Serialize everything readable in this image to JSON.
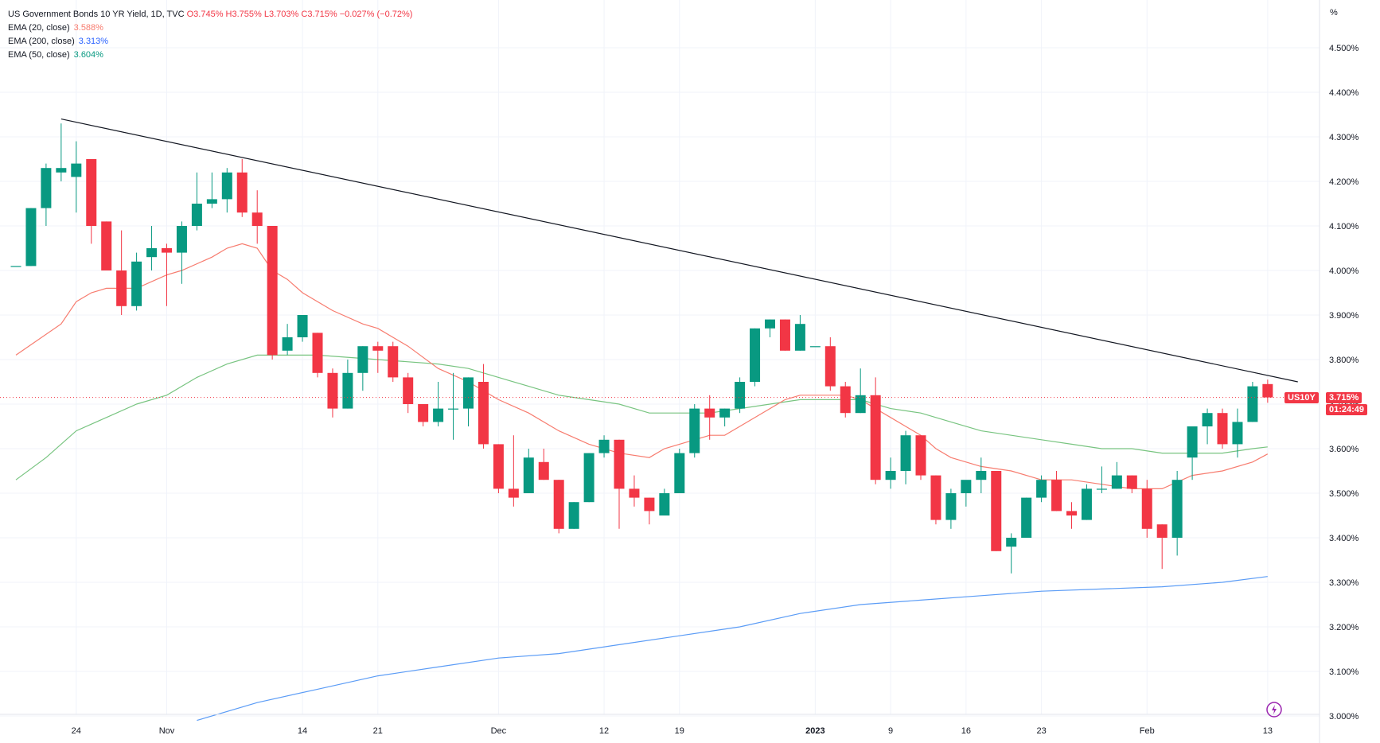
{
  "legend": {
    "title": "US Government Bonds 10 YR Yield, 1D, TVC",
    "ohlc": {
      "o_label": "O",
      "o": "3.745%",
      "h_label": "H",
      "h": "3.755%",
      "l_label": "L",
      "l": "3.703%",
      "c_label": "C",
      "c": "3.715%",
      "change": "−0.027% (−0.72%)"
    },
    "ema20": {
      "label": "EMA (20, close)",
      "value": "3.588%"
    },
    "ema200": {
      "label": "EMA (200, close)",
      "value": "3.313%"
    },
    "ema50": {
      "label": "EMA (50, close)",
      "value": "3.604%"
    }
  },
  "price_axis_unit": "%",
  "price_badge": {
    "symbol": "US10Y",
    "price": "3.715%",
    "countdown": "01:24:49"
  },
  "colors": {
    "up": "#089981",
    "down": "#f23645",
    "ema20": "#f77c6f",
    "ema50": "#78c480",
    "ema200": "#5b9cf6",
    "trendline": "#131722",
    "grid": "#f0f3fa",
    "replay_icon": "#9c27b0"
  },
  "chart_data": {
    "type": "candlestick",
    "title": "US Government Bonds 10 YR Yield, 1D, TVC",
    "ylim": [
      3.0,
      4.55
    ],
    "yticks": [
      3.0,
      3.1,
      3.2,
      3.3,
      3.4,
      3.5,
      3.6,
      3.7,
      3.8,
      3.9,
      4.0,
      4.1,
      4.2,
      4.3,
      4.4,
      4.5
    ],
    "ytick_labels": [
      "3.000%",
      "3.100%",
      "3.200%",
      "3.300%",
      "3.400%",
      "3.500%",
      "3.600%",
      "3.700%",
      "3.800%",
      "3.900%",
      "4.000%",
      "4.100%",
      "4.200%",
      "4.300%",
      "4.400%",
      "4.500%"
    ],
    "xticks": [
      {
        "index": 4,
        "label": "24"
      },
      {
        "index": 10,
        "label": "Nov"
      },
      {
        "index": 19,
        "label": "14"
      },
      {
        "index": 24,
        "label": "21"
      },
      {
        "index": 32,
        "label": "Dec"
      },
      {
        "index": 39,
        "label": "12"
      },
      {
        "index": 44,
        "label": "19"
      },
      {
        "index": 53,
        "label": "2023"
      },
      {
        "index": 58,
        "label": "9"
      },
      {
        "index": 63,
        "label": "16"
      },
      {
        "index": 68,
        "label": "23"
      },
      {
        "index": 75,
        "label": "Feb"
      },
      {
        "index": 83,
        "label": "13"
      }
    ],
    "candles": [
      {
        "o": 4.01,
        "h": 4.01,
        "l": 4.01,
        "c": 4.01
      },
      {
        "o": 4.01,
        "h": 4.14,
        "l": 4.01,
        "c": 4.14
      },
      {
        "o": 4.14,
        "h": 4.24,
        "l": 4.1,
        "c": 4.23
      },
      {
        "o": 4.22,
        "h": 4.33,
        "l": 4.2,
        "c": 4.23
      },
      {
        "o": 4.21,
        "h": 4.29,
        "l": 4.13,
        "c": 4.24
      },
      {
        "o": 4.25,
        "h": 4.25,
        "l": 4.06,
        "c": 4.1
      },
      {
        "o": 4.11,
        "h": 4.11,
        "l": 4.0,
        "c": 4.0
      },
      {
        "o": 4.0,
        "h": 4.09,
        "l": 3.9,
        "c": 3.92
      },
      {
        "o": 3.92,
        "h": 4.04,
        "l": 3.91,
        "c": 4.02
      },
      {
        "o": 4.03,
        "h": 4.1,
        "l": 4.0,
        "c": 4.05
      },
      {
        "o": 4.05,
        "h": 4.06,
        "l": 3.92,
        "c": 4.04
      },
      {
        "o": 4.04,
        "h": 4.11,
        "l": 3.97,
        "c": 4.1
      },
      {
        "o": 4.1,
        "h": 4.22,
        "l": 4.09,
        "c": 4.15
      },
      {
        "o": 4.15,
        "h": 4.22,
        "l": 4.14,
        "c": 4.16
      },
      {
        "o": 4.16,
        "h": 4.23,
        "l": 4.13,
        "c": 4.22
      },
      {
        "o": 4.22,
        "h": 4.25,
        "l": 4.12,
        "c": 4.13
      },
      {
        "o": 4.13,
        "h": 4.18,
        "l": 4.06,
        "c": 4.1
      },
      {
        "o": 4.1,
        "h": 4.1,
        "l": 3.8,
        "c": 3.81
      },
      {
        "o": 3.82,
        "h": 3.88,
        "l": 3.81,
        "c": 3.85
      },
      {
        "o": 3.85,
        "h": 3.9,
        "l": 3.84,
        "c": 3.9
      },
      {
        "o": 3.86,
        "h": 3.86,
        "l": 3.76,
        "c": 3.77
      },
      {
        "o": 3.77,
        "h": 3.78,
        "l": 3.67,
        "c": 3.69
      },
      {
        "o": 3.69,
        "h": 3.8,
        "l": 3.69,
        "c": 3.77
      },
      {
        "o": 3.77,
        "h": 3.83,
        "l": 3.73,
        "c": 3.83
      },
      {
        "o": 3.83,
        "h": 3.84,
        "l": 3.77,
        "c": 3.82
      },
      {
        "o": 3.83,
        "h": 3.84,
        "l": 3.75,
        "c": 3.76
      },
      {
        "o": 3.76,
        "h": 3.77,
        "l": 3.68,
        "c": 3.7
      },
      {
        "o": 3.7,
        "h": 3.7,
        "l": 3.65,
        "c": 3.66
      },
      {
        "o": 3.66,
        "h": 3.75,
        "l": 3.65,
        "c": 3.69
      },
      {
        "o": 3.69,
        "h": 3.77,
        "l": 3.62,
        "c": 3.69
      },
      {
        "o": 3.69,
        "h": 3.76,
        "l": 3.65,
        "c": 3.76
      },
      {
        "o": 3.75,
        "h": 3.79,
        "l": 3.6,
        "c": 3.61
      },
      {
        "o": 3.61,
        "h": 3.61,
        "l": 3.5,
        "c": 3.51
      },
      {
        "o": 3.51,
        "h": 3.63,
        "l": 3.47,
        "c": 3.49
      },
      {
        "o": 3.5,
        "h": 3.6,
        "l": 3.5,
        "c": 3.58
      },
      {
        "o": 3.57,
        "h": 3.6,
        "l": 3.53,
        "c": 3.53
      },
      {
        "o": 3.53,
        "h": 3.53,
        "l": 3.41,
        "c": 3.42
      },
      {
        "o": 3.42,
        "h": 3.48,
        "l": 3.42,
        "c": 3.48
      },
      {
        "o": 3.48,
        "h": 3.59,
        "l": 3.48,
        "c": 3.59
      },
      {
        "o": 3.59,
        "h": 3.63,
        "l": 3.58,
        "c": 3.62
      },
      {
        "o": 3.62,
        "h": 3.62,
        "l": 3.42,
        "c": 3.51
      },
      {
        "o": 3.51,
        "h": 3.54,
        "l": 3.47,
        "c": 3.49
      },
      {
        "o": 3.49,
        "h": 3.49,
        "l": 3.43,
        "c": 3.46
      },
      {
        "o": 3.45,
        "h": 3.51,
        "l": 3.45,
        "c": 3.5
      },
      {
        "o": 3.5,
        "h": 3.6,
        "l": 3.5,
        "c": 3.59
      },
      {
        "o": 3.59,
        "h": 3.7,
        "l": 3.58,
        "c": 3.69
      },
      {
        "o": 3.69,
        "h": 3.72,
        "l": 3.62,
        "c": 3.67
      },
      {
        "o": 3.67,
        "h": 3.69,
        "l": 3.65,
        "c": 3.69
      },
      {
        "o": 3.69,
        "h": 3.76,
        "l": 3.68,
        "c": 3.75
      },
      {
        "o": 3.75,
        "h": 3.87,
        "l": 3.74,
        "c": 3.87
      },
      {
        "o": 3.87,
        "h": 3.89,
        "l": 3.85,
        "c": 3.89
      },
      {
        "o": 3.89,
        "h": 3.89,
        "l": 3.82,
        "c": 3.82
      },
      {
        "o": 3.82,
        "h": 3.9,
        "l": 3.82,
        "c": 3.88
      },
      {
        "o": 3.83,
        "h": 3.83,
        "l": 3.83,
        "c": 3.83
      },
      {
        "o": 3.83,
        "h": 3.85,
        "l": 3.73,
        "c": 3.74
      },
      {
        "o": 3.74,
        "h": 3.75,
        "l": 3.67,
        "c": 3.68
      },
      {
        "o": 3.68,
        "h": 3.78,
        "l": 3.68,
        "c": 3.72
      },
      {
        "o": 3.72,
        "h": 3.76,
        "l": 3.52,
        "c": 3.53
      },
      {
        "o": 3.53,
        "h": 3.58,
        "l": 3.51,
        "c": 3.55
      },
      {
        "o": 3.55,
        "h": 3.64,
        "l": 3.52,
        "c": 3.63
      },
      {
        "o": 3.63,
        "h": 3.63,
        "l": 3.53,
        "c": 3.54
      },
      {
        "o": 3.54,
        "h": 3.54,
        "l": 3.43,
        "c": 3.44
      },
      {
        "o": 3.44,
        "h": 3.51,
        "l": 3.42,
        "c": 3.5
      },
      {
        "o": 3.5,
        "h": 3.52,
        "l": 3.47,
        "c": 3.53
      },
      {
        "o": 3.53,
        "h": 3.58,
        "l": 3.5,
        "c": 3.55
      },
      {
        "o": 3.55,
        "h": 3.55,
        "l": 3.37,
        "c": 3.37
      },
      {
        "o": 3.38,
        "h": 3.41,
        "l": 3.32,
        "c": 3.4
      },
      {
        "o": 3.4,
        "h": 3.49,
        "l": 3.4,
        "c": 3.49
      },
      {
        "o": 3.49,
        "h": 3.54,
        "l": 3.48,
        "c": 3.53
      },
      {
        "o": 3.53,
        "h": 3.55,
        "l": 3.46,
        "c": 3.46
      },
      {
        "o": 3.46,
        "h": 3.48,
        "l": 3.42,
        "c": 3.45
      },
      {
        "o": 3.44,
        "h": 3.52,
        "l": 3.44,
        "c": 3.51
      },
      {
        "o": 3.51,
        "h": 3.56,
        "l": 3.5,
        "c": 3.51
      },
      {
        "o": 3.51,
        "h": 3.57,
        "l": 3.51,
        "c": 3.54
      },
      {
        "o": 3.54,
        "h": 3.54,
        "l": 3.5,
        "c": 3.51
      },
      {
        "o": 3.51,
        "h": 3.53,
        "l": 3.4,
        "c": 3.42
      },
      {
        "o": 3.43,
        "h": 3.43,
        "l": 3.33,
        "c": 3.4
      },
      {
        "o": 3.4,
        "h": 3.55,
        "l": 3.36,
        "c": 3.53
      },
      {
        "o": 3.58,
        "h": 3.65,
        "l": 3.53,
        "c": 3.65
      },
      {
        "o": 3.65,
        "h": 3.69,
        "l": 3.61,
        "c": 3.68
      },
      {
        "o": 3.68,
        "h": 3.69,
        "l": 3.6,
        "c": 3.61
      },
      {
        "o": 3.61,
        "h": 3.69,
        "l": 3.58,
        "c": 3.66
      },
      {
        "o": 3.66,
        "h": 3.75,
        "l": 3.66,
        "c": 3.74
      },
      {
        "o": 3.745,
        "h": 3.755,
        "l": 3.703,
        "c": 3.715
      }
    ],
    "ema20": [
      [
        0,
        3.81
      ],
      [
        3,
        3.88
      ],
      [
        4,
        3.93
      ],
      [
        5,
        3.95
      ],
      [
        6,
        3.96
      ],
      [
        7,
        3.96
      ],
      [
        8,
        3.96
      ],
      [
        10,
        3.99
      ],
      [
        11,
        4.0
      ],
      [
        13,
        4.03
      ],
      [
        14,
        4.05
      ],
      [
        15,
        4.06
      ],
      [
        16,
        4.05
      ],
      [
        17,
        4.0
      ],
      [
        18,
        3.98
      ],
      [
        19,
        3.95
      ],
      [
        21,
        3.91
      ],
      [
        23,
        3.88
      ],
      [
        24,
        3.87
      ],
      [
        26,
        3.83
      ],
      [
        28,
        3.78
      ],
      [
        30,
        3.75
      ],
      [
        32,
        3.71
      ],
      [
        34,
        3.68
      ],
      [
        36,
        3.64
      ],
      [
        38,
        3.61
      ],
      [
        40,
        3.59
      ],
      [
        42,
        3.58
      ],
      [
        43,
        3.6
      ],
      [
        45,
        3.62
      ],
      [
        46,
        3.63
      ],
      [
        47,
        3.63
      ],
      [
        48,
        3.65
      ],
      [
        50,
        3.69
      ],
      [
        51,
        3.71
      ],
      [
        52,
        3.72
      ],
      [
        54,
        3.72
      ],
      [
        55,
        3.72
      ],
      [
        56,
        3.71
      ],
      [
        57,
        3.69
      ],
      [
        58,
        3.67
      ],
      [
        59,
        3.65
      ],
      [
        60,
        3.63
      ],
      [
        61,
        3.6
      ],
      [
        62,
        3.58
      ],
      [
        63,
        3.57
      ],
      [
        64,
        3.56
      ],
      [
        66,
        3.55
      ],
      [
        68,
        3.53
      ],
      [
        70,
        3.53
      ],
      [
        72,
        3.52
      ],
      [
        74,
        3.51
      ],
      [
        75,
        3.51
      ],
      [
        76,
        3.51
      ],
      [
        78,
        3.54
      ],
      [
        80,
        3.55
      ],
      [
        82,
        3.57
      ],
      [
        83,
        3.588
      ]
    ],
    "ema50": [
      [
        0,
        3.53
      ],
      [
        2,
        3.58
      ],
      [
        4,
        3.64
      ],
      [
        6,
        3.67
      ],
      [
        8,
        3.7
      ],
      [
        10,
        3.72
      ],
      [
        12,
        3.76
      ],
      [
        14,
        3.79
      ],
      [
        16,
        3.81
      ],
      [
        18,
        3.81
      ],
      [
        20,
        3.81
      ],
      [
        24,
        3.8
      ],
      [
        28,
        3.79
      ],
      [
        30,
        3.78
      ],
      [
        32,
        3.76
      ],
      [
        34,
        3.74
      ],
      [
        36,
        3.72
      ],
      [
        38,
        3.71
      ],
      [
        40,
        3.7
      ],
      [
        42,
        3.68
      ],
      [
        44,
        3.68
      ],
      [
        46,
        3.68
      ],
      [
        48,
        3.69
      ],
      [
        50,
        3.7
      ],
      [
        52,
        3.71
      ],
      [
        54,
        3.71
      ],
      [
        56,
        3.71
      ],
      [
        58,
        3.69
      ],
      [
        60,
        3.68
      ],
      [
        62,
        3.66
      ],
      [
        64,
        3.64
      ],
      [
        66,
        3.63
      ],
      [
        68,
        3.62
      ],
      [
        70,
        3.61
      ],
      [
        72,
        3.6
      ],
      [
        74,
        3.6
      ],
      [
        76,
        3.59
      ],
      [
        78,
        3.59
      ],
      [
        80,
        3.59
      ],
      [
        82,
        3.6
      ],
      [
        83,
        3.604
      ]
    ],
    "ema200": [
      [
        12,
        2.99
      ],
      [
        16,
        3.03
      ],
      [
        20,
        3.06
      ],
      [
        24,
        3.09
      ],
      [
        28,
        3.11
      ],
      [
        32,
        3.13
      ],
      [
        36,
        3.14
      ],
      [
        40,
        3.16
      ],
      [
        44,
        3.18
      ],
      [
        48,
        3.2
      ],
      [
        52,
        3.23
      ],
      [
        56,
        3.25
      ],
      [
        60,
        3.26
      ],
      [
        64,
        3.27
      ],
      [
        68,
        3.28
      ],
      [
        72,
        3.285
      ],
      [
        76,
        3.29
      ],
      [
        80,
        3.3
      ],
      [
        83,
        3.313
      ]
    ],
    "trendline": [
      [
        3,
        4.34
      ],
      [
        85,
        3.75
      ]
    ],
    "current_price": 3.715
  }
}
